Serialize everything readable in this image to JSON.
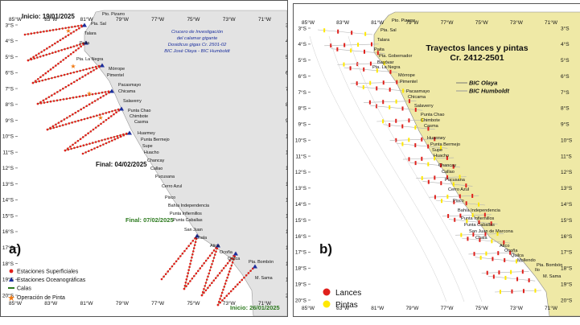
{
  "panel_a": {
    "label": "a)",
    "start_label": "Inicio: 19/01/2025",
    "final_label": "Final: 04/02/2025",
    "final2_label": "Final: 07/02/2025",
    "start2_label": "Inicio: 26/01/2025",
    "cruise_title": [
      "Crucero de Investigación",
      "del calamar gigante",
      "Dosidicus gigas Cr. 2501-02",
      "BIC José Olaya - BIC Humboldt"
    ],
    "ports": [
      "Pto. Pizarro",
      "Pta. Sal",
      "Talara",
      "Paita",
      "Pta. La Negra",
      "Mórrope",
      "Pimentel",
      "Pacasmayo",
      "Chicama",
      "Salaverry",
      "Punta Chao",
      "Chimbote",
      "Casma",
      "Huarmey",
      "Punta Bermejo",
      "Supe",
      "Huacho",
      "Chancay",
      "Callao",
      "Pucusana",
      "Cerro Azul",
      "Pisco",
      "Bahía Independencia",
      "Punta Infiernillos",
      "Punta Caballas",
      "San Juan",
      "Chala",
      "Atico",
      "Ocoña",
      "Quilca",
      "Pta. Bombón",
      "M. Sama"
    ],
    "legend": [
      "Estaciones Superficiales",
      "Estaciones Oceanográficas",
      "Calas",
      "Operación de Pinta"
    ],
    "y_ticks": [
      "3°S",
      "4°S",
      "5°S",
      "6°S",
      "7°S",
      "8°S",
      "9°S",
      "10°S",
      "11°S",
      "12°S",
      "13°S",
      "14°S",
      "15°S",
      "16°S",
      "17°S",
      "18°S",
      "19°S",
      "20°S"
    ],
    "x_ticks": [
      "85°W",
      "83°W",
      "81°W",
      "79°W",
      "77°W",
      "75°W",
      "73°W",
      "71°W"
    ]
  },
  "panel_b": {
    "label": "b)",
    "title": [
      "Trayectos lances y pintas",
      "Cr. 2412-2501"
    ],
    "vessels": [
      "BIC Olaya",
      "BIC Humboldt"
    ],
    "ports": [
      "Pto. Pizarro",
      "Pta. Sal",
      "Talara",
      "Paita",
      "Pta. Gobernador",
      "Bayóvar",
      "Pta. La Negra",
      "Mórrope",
      "Pimentel",
      "Pacasmayo",
      "Chicama",
      "Salaverry",
      "Punta Chao",
      "Chimbote",
      "Casma",
      "Huarmey",
      "Punta Bermejo",
      "Supe",
      "Huacho",
      "Chancay",
      "Callao",
      "Pucusana",
      "Cerro Azul",
      "Pisco",
      "Bahía Independencia",
      "Punta Infiernillos",
      "Punta Caballas",
      "San Juan de Marcona",
      "Chala",
      "Atico",
      "Ocoña",
      "Quilca",
      "Mollendo",
      "Pta. Bombón",
      "Ilo",
      "M. Sama"
    ],
    "legend": [
      "Lances",
      "Pintas"
    ],
    "y_ticks": [
      "3°S",
      "4°S",
      "5°S",
      "6°S",
      "7°S",
      "8°S",
      "9°S",
      "10°S",
      "11°S",
      "12°S",
      "13°S",
      "14°S",
      "15°S",
      "16°S",
      "17°S",
      "18°S",
      "19°S",
      "20°S"
    ],
    "x_ticks": [
      "85°W",
      "83°W",
      "81°W",
      "79°W",
      "77°W",
      "75°W",
      "73°W",
      "71°W"
    ]
  },
  "colors": {
    "land": "#e4e4e4",
    "land_b": "#efe9a6",
    "sea": "#ffffff",
    "red": "#e0201c",
    "yellow": "#ffe800",
    "green": "#2c7a1e",
    "blue": "#1b2f9e",
    "orange": "#f07b17"
  }
}
